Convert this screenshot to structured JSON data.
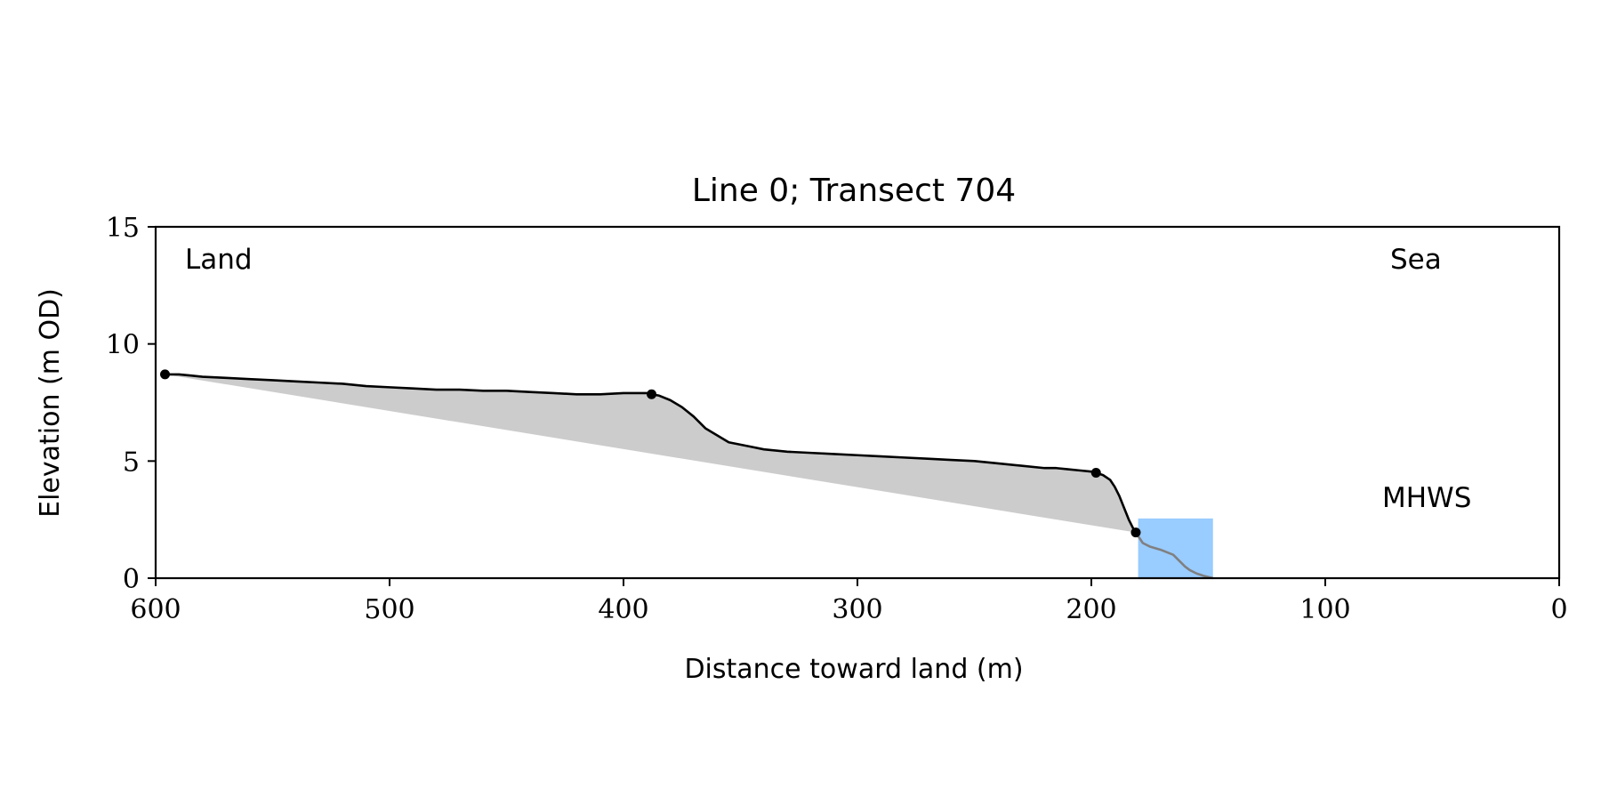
{
  "chart_data": {
    "type": "line",
    "title": "Line 0; Transect 704",
    "xlabel": "Distance toward land (m)",
    "ylabel": "Elevation (m OD)",
    "xlim": [
      600,
      0
    ],
    "ylim": [
      0,
      15
    ],
    "x_ticks": [
      "600",
      "500",
      "400",
      "300",
      "200",
      "100",
      "0"
    ],
    "y_ticks": [
      "0",
      "5",
      "10",
      "15"
    ],
    "grid": false,
    "annotations": {
      "land": "Land",
      "sea": "Sea",
      "mhws": "MHWS"
    },
    "colors": {
      "profile": "#000000",
      "fill": "#cccccc",
      "water": "#99ccff",
      "mhws_label": "#6699cc",
      "seaward_profile": "#808080"
    },
    "profile": {
      "x": [
        596,
        590,
        585,
        580,
        570,
        560,
        550,
        540,
        530,
        520,
        510,
        500,
        490,
        480,
        470,
        460,
        450,
        440,
        430,
        420,
        410,
        400,
        395,
        390,
        388,
        385,
        380,
        375,
        370,
        365,
        360,
        355,
        350,
        345,
        340,
        330,
        320,
        310,
        300,
        290,
        280,
        270,
        260,
        250,
        240,
        230,
        220,
        215,
        210,
        205,
        200,
        198,
        195,
        192,
        190,
        188,
        186,
        184,
        182,
        181
      ],
      "y": [
        8.7,
        8.7,
        8.65,
        8.6,
        8.55,
        8.5,
        8.45,
        8.4,
        8.35,
        8.3,
        8.2,
        8.15,
        8.1,
        8.05,
        8.05,
        8.0,
        8.0,
        7.95,
        7.9,
        7.85,
        7.85,
        7.9,
        7.9,
        7.9,
        7.85,
        7.8,
        7.6,
        7.3,
        6.9,
        6.4,
        6.1,
        5.8,
        5.7,
        5.6,
        5.5,
        5.4,
        5.35,
        5.3,
        5.25,
        5.2,
        5.15,
        5.1,
        5.05,
        5.0,
        4.9,
        4.8,
        4.7,
        4.7,
        4.65,
        4.6,
        4.55,
        4.5,
        4.4,
        4.2,
        3.9,
        3.5,
        3.0,
        2.5,
        2.1,
        1.95
      ]
    },
    "seaward_profile": {
      "x": [
        181,
        178,
        175,
        170,
        165,
        160,
        158,
        155,
        152,
        150,
        148
      ],
      "y": [
        1.95,
        1.5,
        1.35,
        1.2,
        1.0,
        0.5,
        0.35,
        0.2,
        0.1,
        0.05,
        0.0
      ]
    },
    "baseline": {
      "x": [
        596,
        181
      ],
      "y": [
        8.7,
        1.95
      ]
    },
    "markers": [
      {
        "x": 596,
        "y": 8.7
      },
      {
        "x": 388,
        "y": 7.85
      },
      {
        "x": 198,
        "y": 4.5
      },
      {
        "x": 181,
        "y": 1.95
      }
    ],
    "water": {
      "x_range": [
        180,
        148
      ],
      "y_range": [
        0,
        2.55
      ]
    }
  }
}
